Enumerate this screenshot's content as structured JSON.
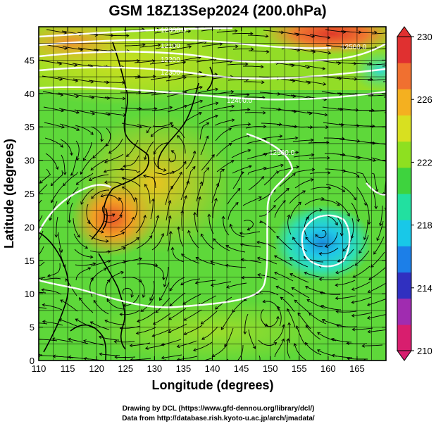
{
  "title": "GSM 18Z13Sep2024 (200.0hPa)",
  "x_axis": {
    "label": "Longitude (degrees)",
    "range": [
      110,
      170
    ],
    "ticks": [
      "110",
      "115",
      "120",
      "125",
      "130",
      "135",
      "140",
      "145",
      "150",
      "155",
      "160",
      "165"
    ]
  },
  "y_axis": {
    "label": "Latitude  (degrees)",
    "range": [
      0,
      50
    ],
    "ticks": [
      "0",
      "5",
      "10",
      "15",
      "20",
      "25",
      "30",
      "35",
      "40",
      "45"
    ]
  },
  "colorbar": {
    "min": 210,
    "max": 230,
    "labels": [
      "230",
      "226",
      "222",
      "218",
      "214",
      "210"
    ],
    "colors": [
      "#d81e6e",
      "#a02cb0",
      "#3030c0",
      "#1c7fe8",
      "#18c8e8",
      "#22e0a0",
      "#3ed33e",
      "#8ee020",
      "#d8e020",
      "#f4b020",
      "#f07030",
      "#e03030"
    ]
  },
  "contour_labels": [
    "12000.0",
    "12100",
    "12200",
    "12300",
    "12400.0",
    "12500.0",
    "12500.0"
  ],
  "credits": [
    "Drawing by DCL (https://www.gfd-dennou.org/library/dcl/)",
    "Data from http://database.rish.kyoto-u.ac.jp/arch/jmadata/"
  ]
}
